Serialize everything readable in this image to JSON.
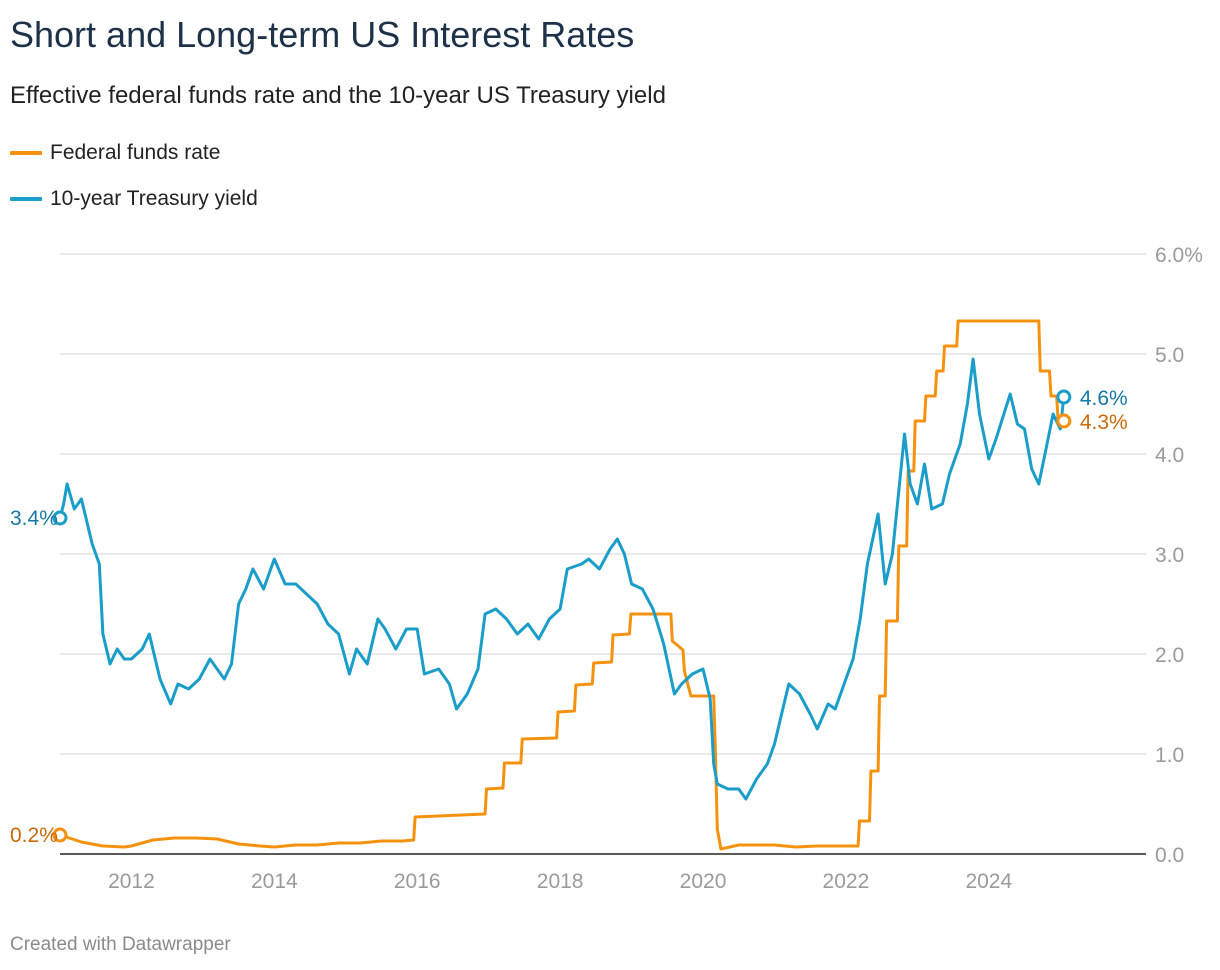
{
  "header": {
    "title": "Short and Long-term US Interest Rates",
    "subtitle": "Effective federal funds rate and the 10-year US Treasury yield"
  },
  "footer": {
    "credit": "Created with Datawrapper"
  },
  "colors": {
    "fed": "#f4920f",
    "treasury": "#1b9dc9",
    "fed_label": "#c9690a",
    "treasury_label": "#1678a6",
    "grid": "#e2e2e2",
    "axis": "#222222"
  },
  "chart_data": {
    "type": "line",
    "xlabel": "",
    "ylabel": "",
    "xlim": [
      2011.0,
      2026.2
    ],
    "ylim": [
      0,
      6
    ],
    "x_ticks": [
      {
        "value": 2012,
        "label": "2012"
      },
      {
        "value": 2014,
        "label": "2014"
      },
      {
        "value": 2016,
        "label": "2016"
      },
      {
        "value": 2018,
        "label": "2018"
      },
      {
        "value": 2020,
        "label": "2020"
      },
      {
        "value": 2022,
        "label": "2022"
      },
      {
        "value": 2024,
        "label": "2024"
      }
    ],
    "y_ticks": [
      {
        "value": 0,
        "label": "0.0"
      },
      {
        "value": 1,
        "label": "1.0"
      },
      {
        "value": 2,
        "label": "2.0"
      },
      {
        "value": 3,
        "label": "3.0"
      },
      {
        "value": 4,
        "label": "4.0"
      },
      {
        "value": 5,
        "label": "5.0"
      },
      {
        "value": 6,
        "label": "6.0%"
      }
    ],
    "legend": "top-left",
    "grid": "horizontal",
    "series": [
      {
        "name": "Federal funds rate",
        "color": "#f4920f",
        "start_label": "0.2%",
        "end_label": "4.3%",
        "points": [
          [
            2011.0,
            0.19
          ],
          [
            2011.3,
            0.12
          ],
          [
            2011.6,
            0.08
          ],
          [
            2011.9,
            0.07
          ],
          [
            2012.0,
            0.08
          ],
          [
            2012.3,
            0.14
          ],
          [
            2012.6,
            0.16
          ],
          [
            2012.9,
            0.16
          ],
          [
            2013.2,
            0.15
          ],
          [
            2013.5,
            0.1
          ],
          [
            2013.8,
            0.08
          ],
          [
            2014.0,
            0.07
          ],
          [
            2014.3,
            0.09
          ],
          [
            2014.6,
            0.09
          ],
          [
            2014.9,
            0.11
          ],
          [
            2015.2,
            0.11
          ],
          [
            2015.5,
            0.13
          ],
          [
            2015.8,
            0.13
          ],
          [
            2015.95,
            0.14
          ],
          [
            2015.97,
            0.37
          ],
          [
            2016.95,
            0.4
          ],
          [
            2016.97,
            0.65
          ],
          [
            2017.2,
            0.66
          ],
          [
            2017.22,
            0.91
          ],
          [
            2017.45,
            0.91
          ],
          [
            2017.47,
            1.15
          ],
          [
            2017.95,
            1.16
          ],
          [
            2017.97,
            1.42
          ],
          [
            2018.2,
            1.43
          ],
          [
            2018.22,
            1.69
          ],
          [
            2018.45,
            1.7
          ],
          [
            2018.47,
            1.91
          ],
          [
            2018.72,
            1.92
          ],
          [
            2018.74,
            2.19
          ],
          [
            2018.97,
            2.2
          ],
          [
            2018.99,
            2.4
          ],
          [
            2019.55,
            2.4
          ],
          [
            2019.57,
            2.13
          ],
          [
            2019.72,
            2.04
          ],
          [
            2019.74,
            1.83
          ],
          [
            2019.83,
            1.58
          ],
          [
            2020.15,
            1.58
          ],
          [
            2020.17,
            1.09
          ],
          [
            2020.2,
            0.25
          ],
          [
            2020.25,
            0.05
          ],
          [
            2020.5,
            0.09
          ],
          [
            2020.8,
            0.09
          ],
          [
            2021.0,
            0.09
          ],
          [
            2021.3,
            0.07
          ],
          [
            2021.6,
            0.08
          ],
          [
            2021.9,
            0.08
          ],
          [
            2022.17,
            0.08
          ],
          [
            2022.19,
            0.33
          ],
          [
            2022.33,
            0.33
          ],
          [
            2022.35,
            0.83
          ],
          [
            2022.45,
            0.83
          ],
          [
            2022.47,
            1.58
          ],
          [
            2022.55,
            1.58
          ],
          [
            2022.57,
            2.33
          ],
          [
            2022.72,
            2.33
          ],
          [
            2022.74,
            3.08
          ],
          [
            2022.85,
            3.08
          ],
          [
            2022.87,
            3.83
          ],
          [
            2022.95,
            3.83
          ],
          [
            2022.97,
            4.33
          ],
          [
            2023.1,
            4.33
          ],
          [
            2023.12,
            4.58
          ],
          [
            2023.25,
            4.58
          ],
          [
            2023.27,
            4.83
          ],
          [
            2023.36,
            4.83
          ],
          [
            2023.38,
            5.08
          ],
          [
            2023.55,
            5.08
          ],
          [
            2023.57,
            5.33
          ],
          [
            2024.7,
            5.33
          ],
          [
            2024.72,
            4.83
          ],
          [
            2024.85,
            4.83
          ],
          [
            2024.87,
            4.58
          ],
          [
            2024.95,
            4.58
          ],
          [
            2024.97,
            4.33
          ],
          [
            2025.05,
            4.33
          ]
        ]
      },
      {
        "name": "10-year Treasury yield",
        "color": "#1b9dc9",
        "start_label": "3.4%",
        "end_label": "4.6%",
        "points": [
          [
            2011.0,
            3.36
          ],
          [
            2011.05,
            3.5
          ],
          [
            2011.1,
            3.7
          ],
          [
            2011.2,
            3.45
          ],
          [
            2011.3,
            3.55
          ],
          [
            2011.45,
            3.1
          ],
          [
            2011.55,
            2.9
          ],
          [
            2011.6,
            2.2
          ],
          [
            2011.7,
            1.9
          ],
          [
            2011.8,
            2.05
          ],
          [
            2011.9,
            1.95
          ],
          [
            2012.0,
            1.95
          ],
          [
            2012.15,
            2.05
          ],
          [
            2012.25,
            2.2
          ],
          [
            2012.4,
            1.75
          ],
          [
            2012.55,
            1.5
          ],
          [
            2012.65,
            1.7
          ],
          [
            2012.8,
            1.65
          ],
          [
            2012.95,
            1.75
          ],
          [
            2013.1,
            1.95
          ],
          [
            2013.3,
            1.75
          ],
          [
            2013.4,
            1.9
          ],
          [
            2013.5,
            2.5
          ],
          [
            2013.6,
            2.65
          ],
          [
            2013.7,
            2.85
          ],
          [
            2013.85,
            2.65
          ],
          [
            2014.0,
            2.95
          ],
          [
            2014.15,
            2.7
          ],
          [
            2014.3,
            2.7
          ],
          [
            2014.45,
            2.6
          ],
          [
            2014.6,
            2.5
          ],
          [
            2014.75,
            2.3
          ],
          [
            2014.9,
            2.2
          ],
          [
            2015.05,
            1.8
          ],
          [
            2015.15,
            2.05
          ],
          [
            2015.3,
            1.9
          ],
          [
            2015.45,
            2.35
          ],
          [
            2015.55,
            2.25
          ],
          [
            2015.7,
            2.05
          ],
          [
            2015.85,
            2.25
          ],
          [
            2016.0,
            2.25
          ],
          [
            2016.1,
            1.8
          ],
          [
            2016.3,
            1.85
          ],
          [
            2016.45,
            1.7
          ],
          [
            2016.55,
            1.45
          ],
          [
            2016.7,
            1.6
          ],
          [
            2016.85,
            1.85
          ],
          [
            2016.95,
            2.4
          ],
          [
            2017.1,
            2.45
          ],
          [
            2017.25,
            2.35
          ],
          [
            2017.4,
            2.2
          ],
          [
            2017.55,
            2.3
          ],
          [
            2017.7,
            2.15
          ],
          [
            2017.85,
            2.35
          ],
          [
            2018.0,
            2.45
          ],
          [
            2018.1,
            2.85
          ],
          [
            2018.3,
            2.9
          ],
          [
            2018.4,
            2.95
          ],
          [
            2018.55,
            2.85
          ],
          [
            2018.7,
            3.05
          ],
          [
            2018.8,
            3.15
          ],
          [
            2018.9,
            3.0
          ],
          [
            2019.0,
            2.7
          ],
          [
            2019.15,
            2.65
          ],
          [
            2019.3,
            2.45
          ],
          [
            2019.45,
            2.1
          ],
          [
            2019.6,
            1.6
          ],
          [
            2019.7,
            1.7
          ],
          [
            2019.85,
            1.8
          ],
          [
            2020.0,
            1.85
          ],
          [
            2020.1,
            1.55
          ],
          [
            2020.15,
            0.9
          ],
          [
            2020.2,
            0.7
          ],
          [
            2020.35,
            0.65
          ],
          [
            2020.5,
            0.65
          ],
          [
            2020.6,
            0.55
          ],
          [
            2020.75,
            0.75
          ],
          [
            2020.9,
            0.9
          ],
          [
            2021.0,
            1.1
          ],
          [
            2021.1,
            1.4
          ],
          [
            2021.2,
            1.7
          ],
          [
            2021.35,
            1.6
          ],
          [
            2021.5,
            1.4
          ],
          [
            2021.6,
            1.25
          ],
          [
            2021.75,
            1.5
          ],
          [
            2021.85,
            1.45
          ],
          [
            2022.0,
            1.75
          ],
          [
            2022.1,
            1.95
          ],
          [
            2022.2,
            2.35
          ],
          [
            2022.3,
            2.9
          ],
          [
            2022.45,
            3.4
          ],
          [
            2022.55,
            2.7
          ],
          [
            2022.65,
            3.0
          ],
          [
            2022.75,
            3.7
          ],
          [
            2022.82,
            4.2
          ],
          [
            2022.9,
            3.7
          ],
          [
            2023.0,
            3.5
          ],
          [
            2023.1,
            3.9
          ],
          [
            2023.2,
            3.45
          ],
          [
            2023.35,
            3.5
          ],
          [
            2023.45,
            3.8
          ],
          [
            2023.6,
            4.1
          ],
          [
            2023.7,
            4.5
          ],
          [
            2023.78,
            4.95
          ],
          [
            2023.87,
            4.4
          ],
          [
            2024.0,
            3.95
          ],
          [
            2024.1,
            4.15
          ],
          [
            2024.3,
            4.6
          ],
          [
            2024.4,
            4.3
          ],
          [
            2024.5,
            4.25
          ],
          [
            2024.6,
            3.85
          ],
          [
            2024.7,
            3.7
          ],
          [
            2024.8,
            4.05
          ],
          [
            2024.9,
            4.4
          ],
          [
            2025.0,
            4.25
          ],
          [
            2025.05,
            4.57
          ]
        ]
      }
    ]
  }
}
